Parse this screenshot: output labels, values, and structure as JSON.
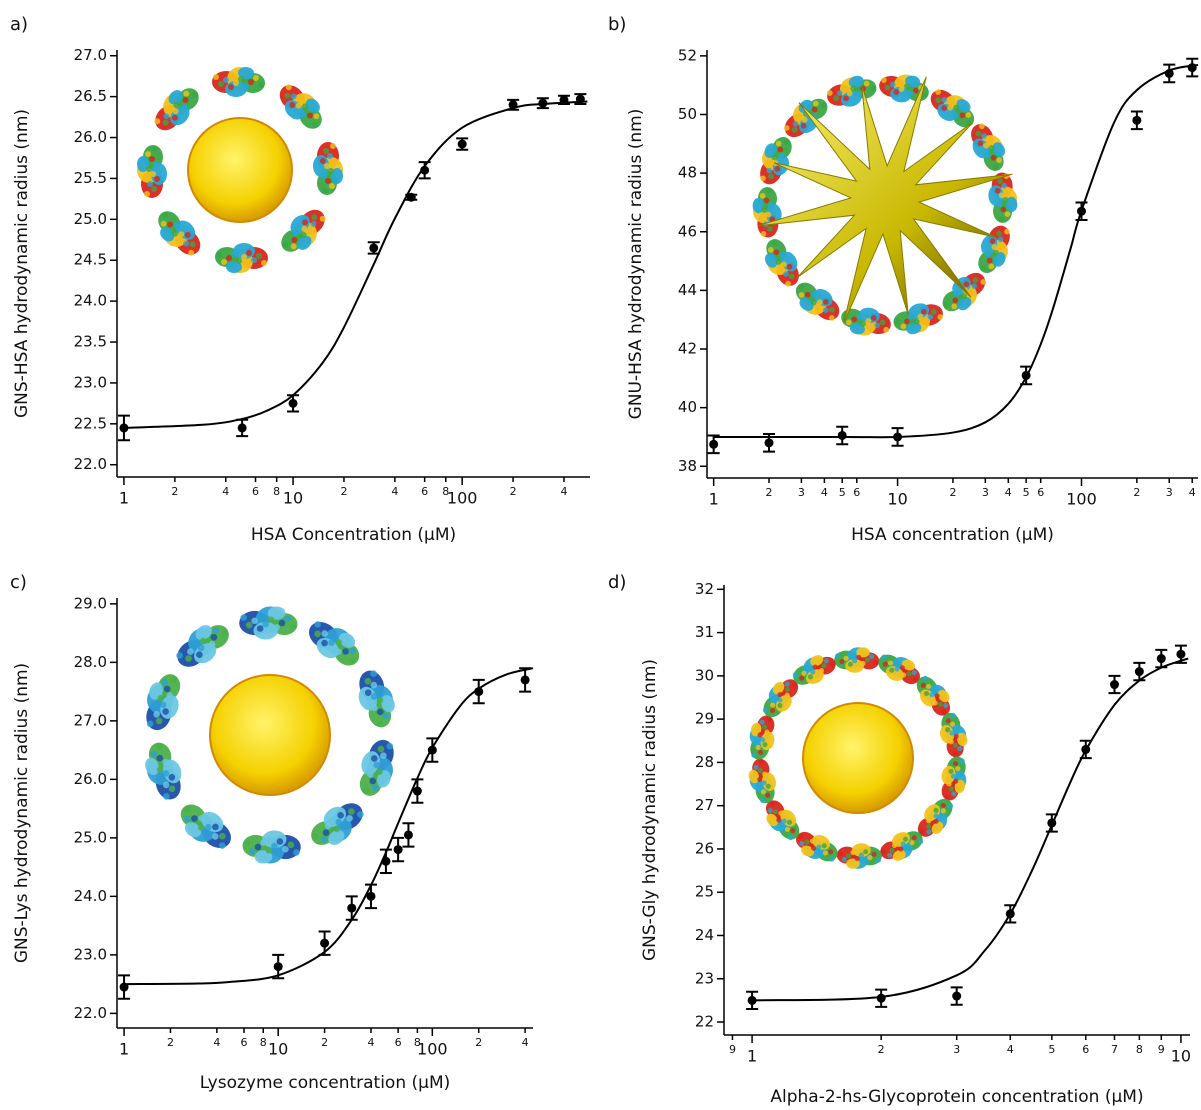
{
  "chart_data": [
    {
      "type": "scatter",
      "panel_label": "a)",
      "x_label": "HSA Concentration (µM)",
      "y_label": "GNS-HSA hydrodynamic radius (nm)",
      "xscale": "log",
      "color": "#000000",
      "x": [
        1,
        5,
        10,
        30,
        50,
        60,
        100,
        200,
        300,
        400,
        500
      ],
      "values": [
        22.45,
        22.45,
        22.75,
        24.65,
        25.27,
        25.6,
        25.92,
        26.4,
        26.42,
        26.46,
        26.47
      ],
      "errors": [
        0.15,
        0.1,
        0.1,
        0.07,
        0.03,
        0.1,
        0.07,
        0.06,
        0.06,
        0.05,
        0.06
      ],
      "fit_x": [
        1,
        3,
        5,
        7,
        10,
        15,
        20,
        30,
        40,
        60,
        100,
        200,
        300,
        550
      ],
      "fit_values": [
        22.45,
        22.49,
        22.56,
        22.66,
        22.85,
        23.25,
        23.68,
        24.45,
        25.01,
        25.65,
        26.12,
        26.36,
        26.41,
        26.44
      ],
      "xlim": [
        0.91,
        570
      ],
      "ylim": [
        21.85,
        27.07
      ],
      "xticks": [
        1,
        2,
        4,
        6,
        8,
        10,
        {
          "value": 20,
          "label": "2"
        },
        {
          "value": 40,
          "label": "4"
        },
        {
          "value": 60,
          "label": "6"
        },
        {
          "value": 80,
          "label": "8"
        },
        100,
        {
          "value": 200,
          "label": "2"
        },
        {
          "value": 400,
          "label": "4"
        }
      ],
      "yticks": [
        {
          "value": 22,
          "label": "22.0"
        },
        22.5,
        {
          "value": 23,
          "label": "23.0"
        },
        23.5,
        {
          "value": 24,
          "label": "24.0"
        },
        24.5,
        {
          "value": 25,
          "label": "25.0"
        },
        25.5,
        {
          "value": 26,
          "label": "26.0"
        },
        26.5,
        {
          "value": 27,
          "label": "27.0"
        }
      ]
    },
    {
      "type": "scatter",
      "panel_label": "b)",
      "x_label": "HSA concentration (µM)",
      "y_label": "GNU-HSA hydrodynamic radius (nm)",
      "xscale": "log",
      "color": "#000000",
      "x": [
        1,
        2,
        5,
        10,
        50,
        100,
        200,
        300,
        400
      ],
      "values": [
        38.75,
        38.8,
        39.05,
        39.0,
        41.1,
        46.7,
        49.8,
        51.4,
        51.6
      ],
      "errors": [
        0.3,
        0.3,
        0.3,
        0.3,
        0.3,
        0.3,
        0.3,
        0.3,
        0.3
      ],
      "fit_x": [
        1,
        5,
        10,
        20,
        30,
        40,
        50,
        60,
        70,
        87,
        100,
        150,
        200,
        300,
        430
      ],
      "fit_values": [
        39.0,
        39.0,
        39.0,
        39.15,
        39.5,
        40.13,
        41.04,
        42.16,
        43.38,
        45.4,
        46.72,
        49.71,
        50.83,
        51.5,
        51.69
      ],
      "xlim": [
        0.92,
        430
      ],
      "ylim": [
        37.6,
        52.2
      ],
      "xticks": [
        1,
        2,
        3,
        4,
        5,
        6,
        10,
        {
          "value": 20,
          "label": "2"
        },
        {
          "value": 30,
          "label": "3"
        },
        {
          "value": 40,
          "label": "4"
        },
        {
          "value": 50,
          "label": "5"
        },
        {
          "value": 60,
          "label": "6"
        },
        100,
        {
          "value": 200,
          "label": "2"
        },
        {
          "value": 300,
          "label": "3"
        },
        {
          "value": 400,
          "label": "4"
        }
      ],
      "yticks": [
        38,
        40,
        42,
        44,
        46,
        48,
        50,
        52
      ]
    },
    {
      "type": "scatter",
      "panel_label": "c)",
      "x_label": "Lysozyme concentration (µM)",
      "y_label": "GNS-Lys hydrodynamic radius (nm)",
      "xscale": "log",
      "color": "#000000",
      "x": [
        1,
        10,
        20,
        30,
        40,
        50,
        60,
        70,
        80,
        100,
        200,
        400
      ],
      "values": [
        22.45,
        22.8,
        23.2,
        23.8,
        24.0,
        24.6,
        24.8,
        25.05,
        25.8,
        26.5,
        27.5,
        27.7
      ],
      "errors": [
        0.2,
        0.2,
        0.2,
        0.2,
        0.2,
        0.2,
        0.2,
        0.2,
        0.2,
        0.2,
        0.2,
        0.2
      ],
      "fit_x": [
        1,
        3,
        5,
        10,
        20,
        30,
        40,
        50,
        60,
        80,
        100,
        150,
        200,
        300,
        450
      ],
      "fit_values": [
        22.5,
        22.51,
        22.54,
        22.65,
        23.05,
        23.6,
        24.19,
        24.75,
        25.25,
        26.02,
        26.54,
        27.24,
        27.55,
        27.79,
        27.9
      ],
      "xlim": [
        0.9,
        450
      ],
      "ylim": [
        21.75,
        29.1
      ],
      "xticks": [
        1,
        2,
        4,
        6,
        8,
        10,
        {
          "value": 20,
          "label": "2"
        },
        {
          "value": 40,
          "label": "4"
        },
        {
          "value": 60,
          "label": "6"
        },
        {
          "value": 80,
          "label": "8"
        },
        100,
        {
          "value": 200,
          "label": "2"
        },
        {
          "value": 400,
          "label": "4"
        }
      ],
      "yticks": [
        {
          "value": 22,
          "label": "22.0"
        },
        {
          "value": 23,
          "label": "23.0"
        },
        {
          "value": 24,
          "label": "24.0"
        },
        {
          "value": 25,
          "label": "25.0"
        },
        {
          "value": 26,
          "label": "26.0"
        },
        {
          "value": 27,
          "label": "27.0"
        },
        {
          "value": 28,
          "label": "28.0"
        },
        {
          "value": 29,
          "label": "29.0"
        }
      ]
    },
    {
      "type": "scatter",
      "panel_label": "d)",
      "x_label": "Alpha-2-hs-Glycoprotein concentration (µM)",
      "y_label": "GNS-Gly hydrodynamic radius (nm)",
      "xscale": "log",
      "color": "#000000",
      "x": [
        1,
        2,
        3,
        4,
        5,
        6,
        7,
        8,
        9,
        10
      ],
      "values": [
        22.5,
        22.55,
        22.6,
        24.5,
        26.6,
        28.3,
        29.8,
        30.1,
        30.4,
        30.5
      ],
      "errors": [
        0.2,
        0.2,
        0.2,
        0.2,
        0.2,
        0.2,
        0.2,
        0.2,
        0.2,
        0.2
      ],
      "fit_x": [
        1,
        2,
        3,
        3.5,
        4,
        4.5,
        5,
        5.5,
        6,
        7,
        8,
        9,
        10,
        10.4
      ],
      "fit_values": [
        22.5,
        22.58,
        23.08,
        23.67,
        24.5,
        25.51,
        26.55,
        27.5,
        28.28,
        29.33,
        29.89,
        30.19,
        30.35,
        30.4
      ],
      "xlim": [
        0.86,
        10.5
      ],
      "ylim": [
        21.7,
        32.1
      ],
      "xticks": [
        {
          "value": 0.9,
          "label": "9"
        },
        1,
        2,
        3,
        4,
        5,
        6,
        7,
        8,
        9,
        10
      ],
      "yticks": [
        22,
        23,
        24,
        25,
        26,
        27,
        28,
        29,
        30,
        31,
        32
      ]
    }
  ]
}
